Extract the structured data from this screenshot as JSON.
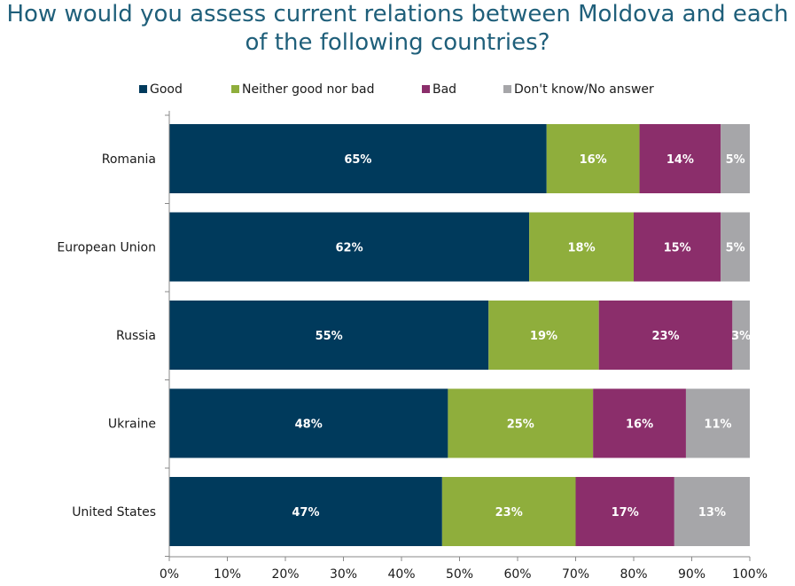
{
  "title_line1": "How would you assess current relations between Moldova and each",
  "title_line2": "of the following countries?",
  "colors": {
    "good": "#003a5c",
    "neither": "#8fae3c",
    "bad": "#8b2e6b",
    "dk": "#a6a6a9",
    "title": "#1f5f7a"
  },
  "chart_data": {
    "type": "bar",
    "orientation": "horizontal",
    "stacked": true,
    "categories": [
      "Romania",
      "European Union",
      "Russia",
      "Ukraine",
      "United States"
    ],
    "series": [
      {
        "name": "Good",
        "values": [
          65,
          62,
          55,
          48,
          47
        ]
      },
      {
        "name": "Neither good nor bad",
        "values": [
          16,
          18,
          19,
          25,
          23
        ]
      },
      {
        "name": "Bad",
        "values": [
          14,
          15,
          23,
          16,
          17
        ]
      },
      {
        "name": "Don't know/No answer",
        "values": [
          5,
          5,
          3,
          11,
          13
        ]
      }
    ],
    "data_labels": [
      [
        "65%",
        "16%",
        "14%",
        "5%"
      ],
      [
        "62%",
        "18%",
        "15%",
        "5%"
      ],
      [
        "55%",
        "19%",
        "23%",
        "3%"
      ],
      [
        "48%",
        "25%",
        "16%",
        "11%"
      ],
      [
        "47%",
        "23%",
        "17%",
        "13%"
      ]
    ],
    "x_ticks": [
      "0%",
      "10%",
      "20%",
      "30%",
      "40%",
      "50%",
      "60%",
      "70%",
      "80%",
      "90%",
      "100%"
    ],
    "xlim": [
      0,
      100
    ],
    "legend_position": "top",
    "grid": false
  }
}
